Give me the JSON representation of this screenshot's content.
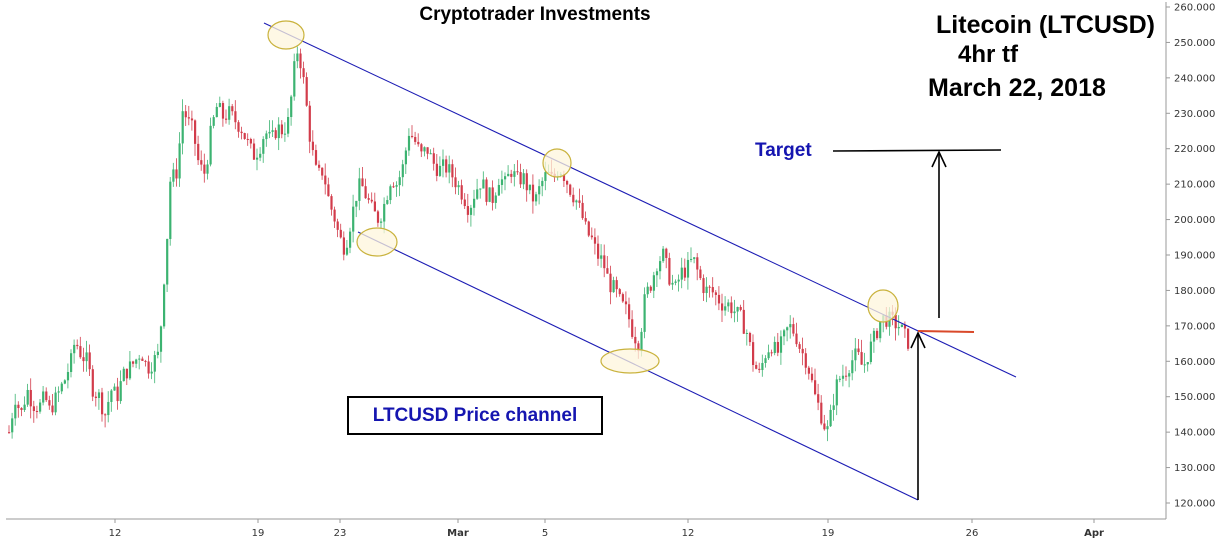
{
  "chart_data": {
    "type": "candlestick",
    "title": "Cryptotrader Investments",
    "instrument_label": "Litecoin (LTCUSD)",
    "timeframe_label": "4hr tf",
    "date_label": "March 22, 2018",
    "y_axis_side": "right",
    "ylim": [
      115,
      262
    ],
    "y_ticks": [
      "260.000",
      "250.000",
      "240.000",
      "230.000",
      "220.000",
      "210.000",
      "200.000",
      "190.000",
      "180.000",
      "170.000",
      "160.000",
      "150.000",
      "140.000",
      "130.000",
      "120.000"
    ],
    "y_tick_values": [
      260,
      250,
      240,
      230,
      220,
      210,
      200,
      190,
      180,
      170,
      160,
      150,
      140,
      130,
      120
    ],
    "x_ticks": [
      "12",
      "19",
      "23",
      "Mar",
      "5",
      "12",
      "19",
      "26",
      "Apr"
    ],
    "grid": false,
    "price_path": [
      [
        0,
        140
      ],
      [
        6,
        150
      ],
      [
        12,
        145
      ],
      [
        18,
        152
      ],
      [
        24,
        148
      ],
      [
        30,
        147
      ],
      [
        36,
        150
      ],
      [
        40,
        146
      ],
      [
        48,
        150
      ],
      [
        56,
        155
      ],
      [
        62,
        160
      ],
      [
        66,
        166
      ],
      [
        72,
        162
      ],
      [
        78,
        160
      ],
      [
        84,
        152
      ],
      [
        90,
        150
      ],
      [
        96,
        145
      ],
      [
        102,
        152
      ],
      [
        108,
        150
      ],
      [
        114,
        156
      ],
      [
        120,
        158
      ],
      [
        126,
        160
      ],
      [
        132,
        163
      ],
      [
        138,
        158
      ],
      [
        144,
        160
      ],
      [
        150,
        162
      ],
      [
        154,
        180
      ],
      [
        158,
        195
      ],
      [
        162,
        215
      ],
      [
        166,
        210
      ],
      [
        170,
        220
      ],
      [
        174,
        232
      ],
      [
        178,
        228
      ],
      [
        184,
        225
      ],
      [
        190,
        215
      ],
      [
        196,
        213
      ],
      [
        202,
        225
      ],
      [
        208,
        232
      ],
      [
        214,
        229
      ],
      [
        220,
        230
      ],
      [
        226,
        228
      ],
      [
        232,
        226
      ],
      [
        238,
        222
      ],
      [
        244,
        218
      ],
      [
        250,
        220
      ],
      [
        256,
        225
      ],
      [
        262,
        222
      ],
      [
        268,
        226
      ],
      [
        274,
        225
      ],
      [
        280,
        228
      ],
      [
        284,
        240
      ],
      [
        288,
        248
      ],
      [
        292,
        244
      ],
      [
        296,
        236
      ],
      [
        300,
        225
      ],
      [
        304,
        218
      ],
      [
        308,
        212
      ],
      [
        314,
        214
      ],
      [
        320,
        205
      ],
      [
        326,
        200
      ],
      [
        330,
        195
      ],
      [
        336,
        192
      ],
      [
        342,
        200
      ],
      [
        348,
        208
      ],
      [
        352,
        210
      ],
      [
        358,
        206
      ],
      [
        364,
        202
      ],
      [
        370,
        200
      ],
      [
        376,
        205
      ],
      [
        382,
        212
      ],
      [
        388,
        210
      ],
      [
        394,
        215
      ],
      [
        400,
        225
      ],
      [
        406,
        222
      ],
      [
        412,
        218
      ],
      [
        418,
        220
      ],
      [
        424,
        216
      ],
      [
        430,
        214
      ],
      [
        436,
        215
      ],
      [
        442,
        213
      ],
      [
        448,
        210
      ],
      [
        454,
        207
      ],
      [
        460,
        203
      ],
      [
        466,
        208
      ],
      [
        472,
        211
      ],
      [
        478,
        207
      ],
      [
        484,
        206
      ],
      [
        490,
        212
      ],
      [
        496,
        210
      ],
      [
        502,
        214
      ],
      [
        508,
        211
      ],
      [
        514,
        212
      ],
      [
        520,
        208
      ],
      [
        526,
        205
      ],
      [
        532,
        210
      ],
      [
        538,
        213
      ],
      [
        544,
        211
      ],
      [
        550,
        215
      ],
      [
        556,
        212
      ],
      [
        562,
        208
      ],
      [
        568,
        205
      ],
      [
        574,
        200
      ],
      [
        578,
        196
      ],
      [
        582,
        195
      ],
      [
        588,
        190
      ],
      [
        594,
        188
      ],
      [
        600,
        182
      ],
      [
        606,
        180
      ],
      [
        612,
        176
      ],
      [
        618,
        174
      ],
      [
        624,
        168
      ],
      [
        630,
        165
      ],
      [
        636,
        178
      ],
      [
        642,
        182
      ],
      [
        648,
        188
      ],
      [
        654,
        190
      ],
      [
        660,
        184
      ],
      [
        666,
        180
      ],
      [
        672,
        185
      ],
      [
        678,
        186
      ],
      [
        684,
        189
      ],
      [
        690,
        184
      ],
      [
        696,
        180
      ],
      [
        702,
        180
      ],
      [
        708,
        178
      ],
      [
        714,
        176
      ],
      [
        720,
        176
      ],
      [
        726,
        174
      ],
      [
        732,
        172
      ],
      [
        738,
        168
      ],
      [
        744,
        160
      ],
      [
        750,
        156
      ],
      [
        756,
        162
      ],
      [
        762,
        165
      ],
      [
        768,
        162
      ],
      [
        774,
        166
      ],
      [
        780,
        170
      ],
      [
        786,
        168
      ],
      [
        792,
        163
      ],
      [
        798,
        160
      ],
      [
        802,
        155
      ],
      [
        806,
        150
      ],
      [
        810,
        147
      ],
      [
        814,
        143
      ],
      [
        818,
        140
      ],
      [
        822,
        145
      ],
      [
        826,
        152
      ],
      [
        830,
        155
      ],
      [
        836,
        157
      ],
      [
        842,
        160
      ],
      [
        848,
        162
      ],
      [
        854,
        158
      ],
      [
        860,
        163
      ],
      [
        866,
        167
      ],
      [
        872,
        172
      ],
      [
        878,
        172
      ],
      [
        884,
        171
      ],
      [
        890,
        170
      ],
      [
        896,
        167
      ],
      [
        902,
        164
      ]
    ]
  },
  "annotations": {
    "channel_label": "LTCUSD Price channel",
    "target_label": "Target"
  },
  "colors": {
    "bull": "#3cb371",
    "bear": "#d23c4b",
    "channel": "#1c1cb4",
    "ellipse_fill": "#fdf6dc",
    "ellipse_stroke": "#c9b23c",
    "breakout": "#d9492a",
    "label_blue": "#1515b0"
  }
}
